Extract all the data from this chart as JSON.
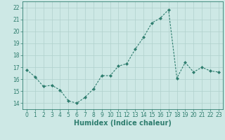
{
  "x": [
    0,
    1,
    2,
    3,
    4,
    5,
    6,
    7,
    8,
    9,
    10,
    11,
    12,
    13,
    14,
    15,
    16,
    17,
    18,
    19,
    20,
    21,
    22,
    23
  ],
  "y": [
    16.8,
    16.2,
    15.4,
    15.5,
    15.1,
    14.2,
    14.0,
    14.5,
    15.2,
    16.3,
    16.3,
    17.1,
    17.3,
    18.5,
    19.5,
    20.7,
    21.1,
    21.8,
    16.1,
    17.4,
    16.6,
    17.0,
    16.7,
    16.6
  ],
  "line_color": "#2e7d6e",
  "marker": "D",
  "marker_size": 2.0,
  "bg_color": "#cde8e5",
  "grid_color": "#b0d0cc",
  "xlabel": "Humidex (Indice chaleur)",
  "xlim": [
    -0.5,
    23.5
  ],
  "ylim": [
    13.5,
    22.5
  ],
  "yticks": [
    14,
    15,
    16,
    17,
    18,
    19,
    20,
    21,
    22
  ],
  "xticks": [
    0,
    1,
    2,
    3,
    4,
    5,
    6,
    7,
    8,
    9,
    10,
    11,
    12,
    13,
    14,
    15,
    16,
    17,
    18,
    19,
    20,
    21,
    22,
    23
  ],
  "tick_color": "#2e7d6e",
  "label_fontsize": 5.5,
  "xlabel_fontsize": 7.0,
  "linewidth": 0.8
}
